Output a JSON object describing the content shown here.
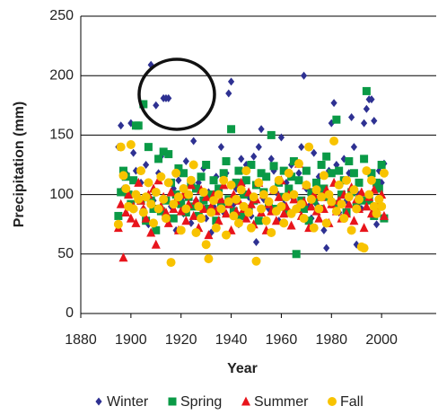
{
  "chart_data": {
    "type": "scatter",
    "x_label": "Year",
    "y_label": "Precipitation (mm)",
    "xlim": [
      1880,
      2020
    ],
    "xticks": [
      1880,
      1900,
      1920,
      1940,
      1960,
      1980,
      2000
    ],
    "ylim": [
      0,
      250
    ],
    "yticks": [
      0,
      50,
      100,
      150,
      200,
      250
    ],
    "grid": true,
    "legend": "bottom",
    "x": [
      1895,
      1896,
      1897,
      1898,
      1899,
      1900,
      1901,
      1902,
      1903,
      1904,
      1905,
      1906,
      1907,
      1908,
      1909,
      1910,
      1911,
      1912,
      1913,
      1914,
      1915,
      1916,
      1917,
      1918,
      1919,
      1920,
      1921,
      1922,
      1923,
      1924,
      1925,
      1926,
      1927,
      1928,
      1929,
      1930,
      1931,
      1932,
      1933,
      1934,
      1935,
      1936,
      1937,
      1938,
      1939,
      1940,
      1941,
      1942,
      1943,
      1944,
      1945,
      1946,
      1947,
      1948,
      1949,
      1950,
      1951,
      1952,
      1953,
      1954,
      1955,
      1956,
      1957,
      1958,
      1959,
      1960,
      1961,
      1962,
      1963,
      1964,
      1965,
      1966,
      1967,
      1968,
      1969,
      1970,
      1971,
      1972,
      1973,
      1974,
      1975,
      1976,
      1977,
      1978,
      1979,
      1980,
      1981,
      1982,
      1983,
      1984,
      1985,
      1986,
      1987,
      1988,
      1989,
      1990,
      1991,
      1992,
      1993,
      1994,
      1995,
      1996,
      1997,
      1998,
      1999,
      2000,
      2001
    ],
    "series": [
      {
        "name": "Winter",
        "color": "#2e3192",
        "marker": "diamond",
        "values": [
          140,
          158,
          105,
          118,
          92,
          160,
          135,
          120,
          98,
          110,
          88,
          125,
          75,
          209,
          95,
          175,
          118,
          132,
          181,
          181,
          181,
          90,
          105,
          70,
          112,
          96,
          84,
          128,
          100,
          76,
          145,
          95,
          110,
          88,
          122,
          80,
          102,
          68,
          90,
          115,
          100,
          140,
          85,
          118,
          185,
          195,
          92,
          105,
          75,
          130,
          110,
          125,
          98,
          82,
          132,
          60,
          140,
          155,
          96,
          115,
          88,
          130,
          120,
          102,
          78,
          148,
          92,
          110,
          85,
          125,
          96,
          128,
          118,
          140,
          200,
          105,
          90,
          80,
          135,
          92,
          115,
          98,
          70,
          55,
          120,
          160,
          177,
          125,
          85,
          110,
          130,
          95,
          118,
          165,
          140,
          58,
          100,
          88,
          160,
          172,
          180,
          180,
          162,
          75,
          120,
          110,
          126
        ]
      },
      {
        "name": "Spring",
        "color": "#0a9a46",
        "marker": "square",
        "values": [
          82,
          102,
          120,
          115,
          100,
          92,
          112,
          158,
          158,
          95,
          176,
          78,
          140,
          95,
          88,
          70,
          130,
          86,
          136,
          95,
          134,
          110,
          80,
          100,
          122,
          92,
          118,
          85,
          98,
          110,
          90,
          105,
          82,
          115,
          95,
          125,
          88,
          100,
          112,
          78,
          105,
          92,
          118,
          128,
          96,
          155,
          86,
          110,
          120,
          82,
          100,
          112,
          88,
          125,
          95,
          108,
          78,
          118,
          102,
          115,
          92,
          150,
          124,
          88,
          110,
          98,
          120,
          85,
          105,
          115,
          128,
          50,
          112,
          95,
          88,
          120,
          78,
          102,
          95,
          110,
          88,
          125,
          105,
          132,
          98,
          118,
          92,
          163,
          120,
          100,
          112,
          85,
          128,
          102,
          118,
          90,
          110,
          95,
          130,
          187,
          95,
          118,
          82,
          110,
          105,
          125,
          80
        ]
      },
      {
        "name": "Summer",
        "color": "#e8141b",
        "marker": "triangle",
        "values": [
          72,
          92,
          47,
          85,
          100,
          80,
          90,
          76,
          110,
          95,
          88,
          80,
          100,
          68,
          105,
          58,
          112,
          90,
          98,
          85,
          76,
          102,
          88,
          95,
          70,
          86,
          100,
          78,
          92,
          108,
          82,
          95,
          72,
          104,
          88,
          98,
          66,
          90,
          100,
          86,
          78,
          96,
          108,
          84,
          92,
          70,
          100,
          86,
          95,
          110,
          88,
          80,
          102,
          92,
          75,
          96,
          110,
          85,
          100,
          70,
          92,
          86,
          104,
          78,
          98,
          112,
          84,
          90,
          100,
          74,
          96,
          88,
          126,
          82,
          94,
          108,
          72,
          90,
          100,
          86,
          80,
          98,
          88,
          104,
          76,
          92,
          110,
          86,
          95,
          80,
          100,
          84,
          92,
          106,
          78,
          96,
          88,
          102,
          72,
          90,
          98,
          84,
          104,
          88,
          92,
          100,
          82
        ]
      },
      {
        "name": "Fall",
        "color": "#f8c300",
        "marker": "circle",
        "values": [
          75,
          140,
          116,
          105,
          90,
          142,
          88,
          100,
          96,
          120,
          85,
          98,
          110,
          92,
          76,
          102,
          88,
          115,
          96,
          80,
          110,
          43,
          92,
          118,
          98,
          70,
          105,
          88,
          100,
          112,
          125,
          68,
          90,
          80,
          102,
          58,
          46,
          85,
          95,
          72,
          100,
          88,
          112,
          66,
          94,
          108,
          82,
          96,
          76,
          104,
          90,
          120,
          85,
          72,
          98,
          44,
          110,
          88,
          100,
          78,
          94,
          68,
          104,
          86,
          112,
          90,
          76,
          98,
          118,
          84,
          100,
          88,
          126,
          92,
          80,
          108,
          140,
          96,
          72,
          104,
          88,
          98,
          116,
          76,
          100,
          94,
          145,
          86,
          108,
          92,
          80,
          112,
          98,
          70,
          104,
          88,
          96,
          56,
          55,
          120,
          100,
          112,
          90,
          84,
          96,
          90,
          118
        ]
      }
    ]
  }
}
